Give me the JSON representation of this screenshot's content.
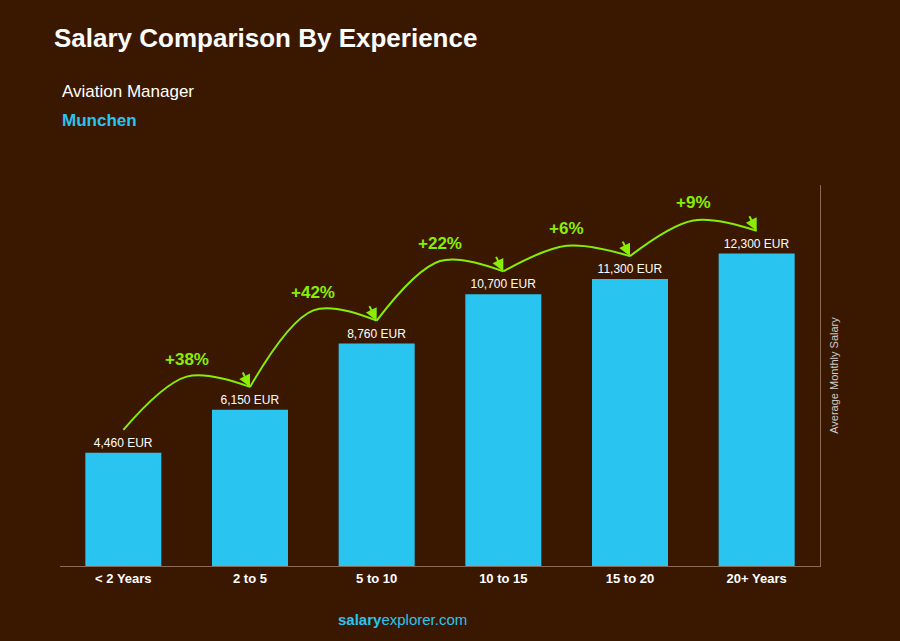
{
  "chart_data": {
    "type": "bar",
    "title": "Salary Comparison By Experience",
    "subtitle": "Aviation Manager",
    "city": "Munchen",
    "ylabel": "Average Monthly Salary",
    "categories": [
      "< 2 Years",
      "2 to 5",
      "5 to 10",
      "10 to 15",
      "15 to 20",
      "20+ Years"
    ],
    "values": [
      4460,
      6150,
      8760,
      10700,
      11300,
      12300
    ],
    "value_labels": [
      "4,460 EUR",
      "6,150 EUR",
      "8,760 EUR",
      "10,700 EUR",
      "11,300 EUR",
      "12,300 EUR"
    ],
    "data_labels": true,
    "color": "#29c4f0",
    "ylim": [
      0,
      15000
    ],
    "grid": false,
    "tick_labels": "x",
    "annotations": [
      {
        "text": "+38%",
        "from": "< 2 Years",
        "to": "2 to 5",
        "color": "#88ee00"
      },
      {
        "text": "+42%",
        "from": "2 to 5",
        "to": "5 to 10",
        "color": "#88ee00"
      },
      {
        "text": "+22%",
        "from": "5 to 10",
        "to": "10 to 15",
        "color": "#88ee00"
      },
      {
        "text": "+6%",
        "from": "10 to 15",
        "to": "15 to 20",
        "color": "#88ee00"
      },
      {
        "text": "+9%",
        "from": "15 to 20",
        "to": "20+ Years",
        "color": "#88ee00"
      }
    ],
    "watermark": [
      "salary",
      "explorer.com"
    ]
  }
}
